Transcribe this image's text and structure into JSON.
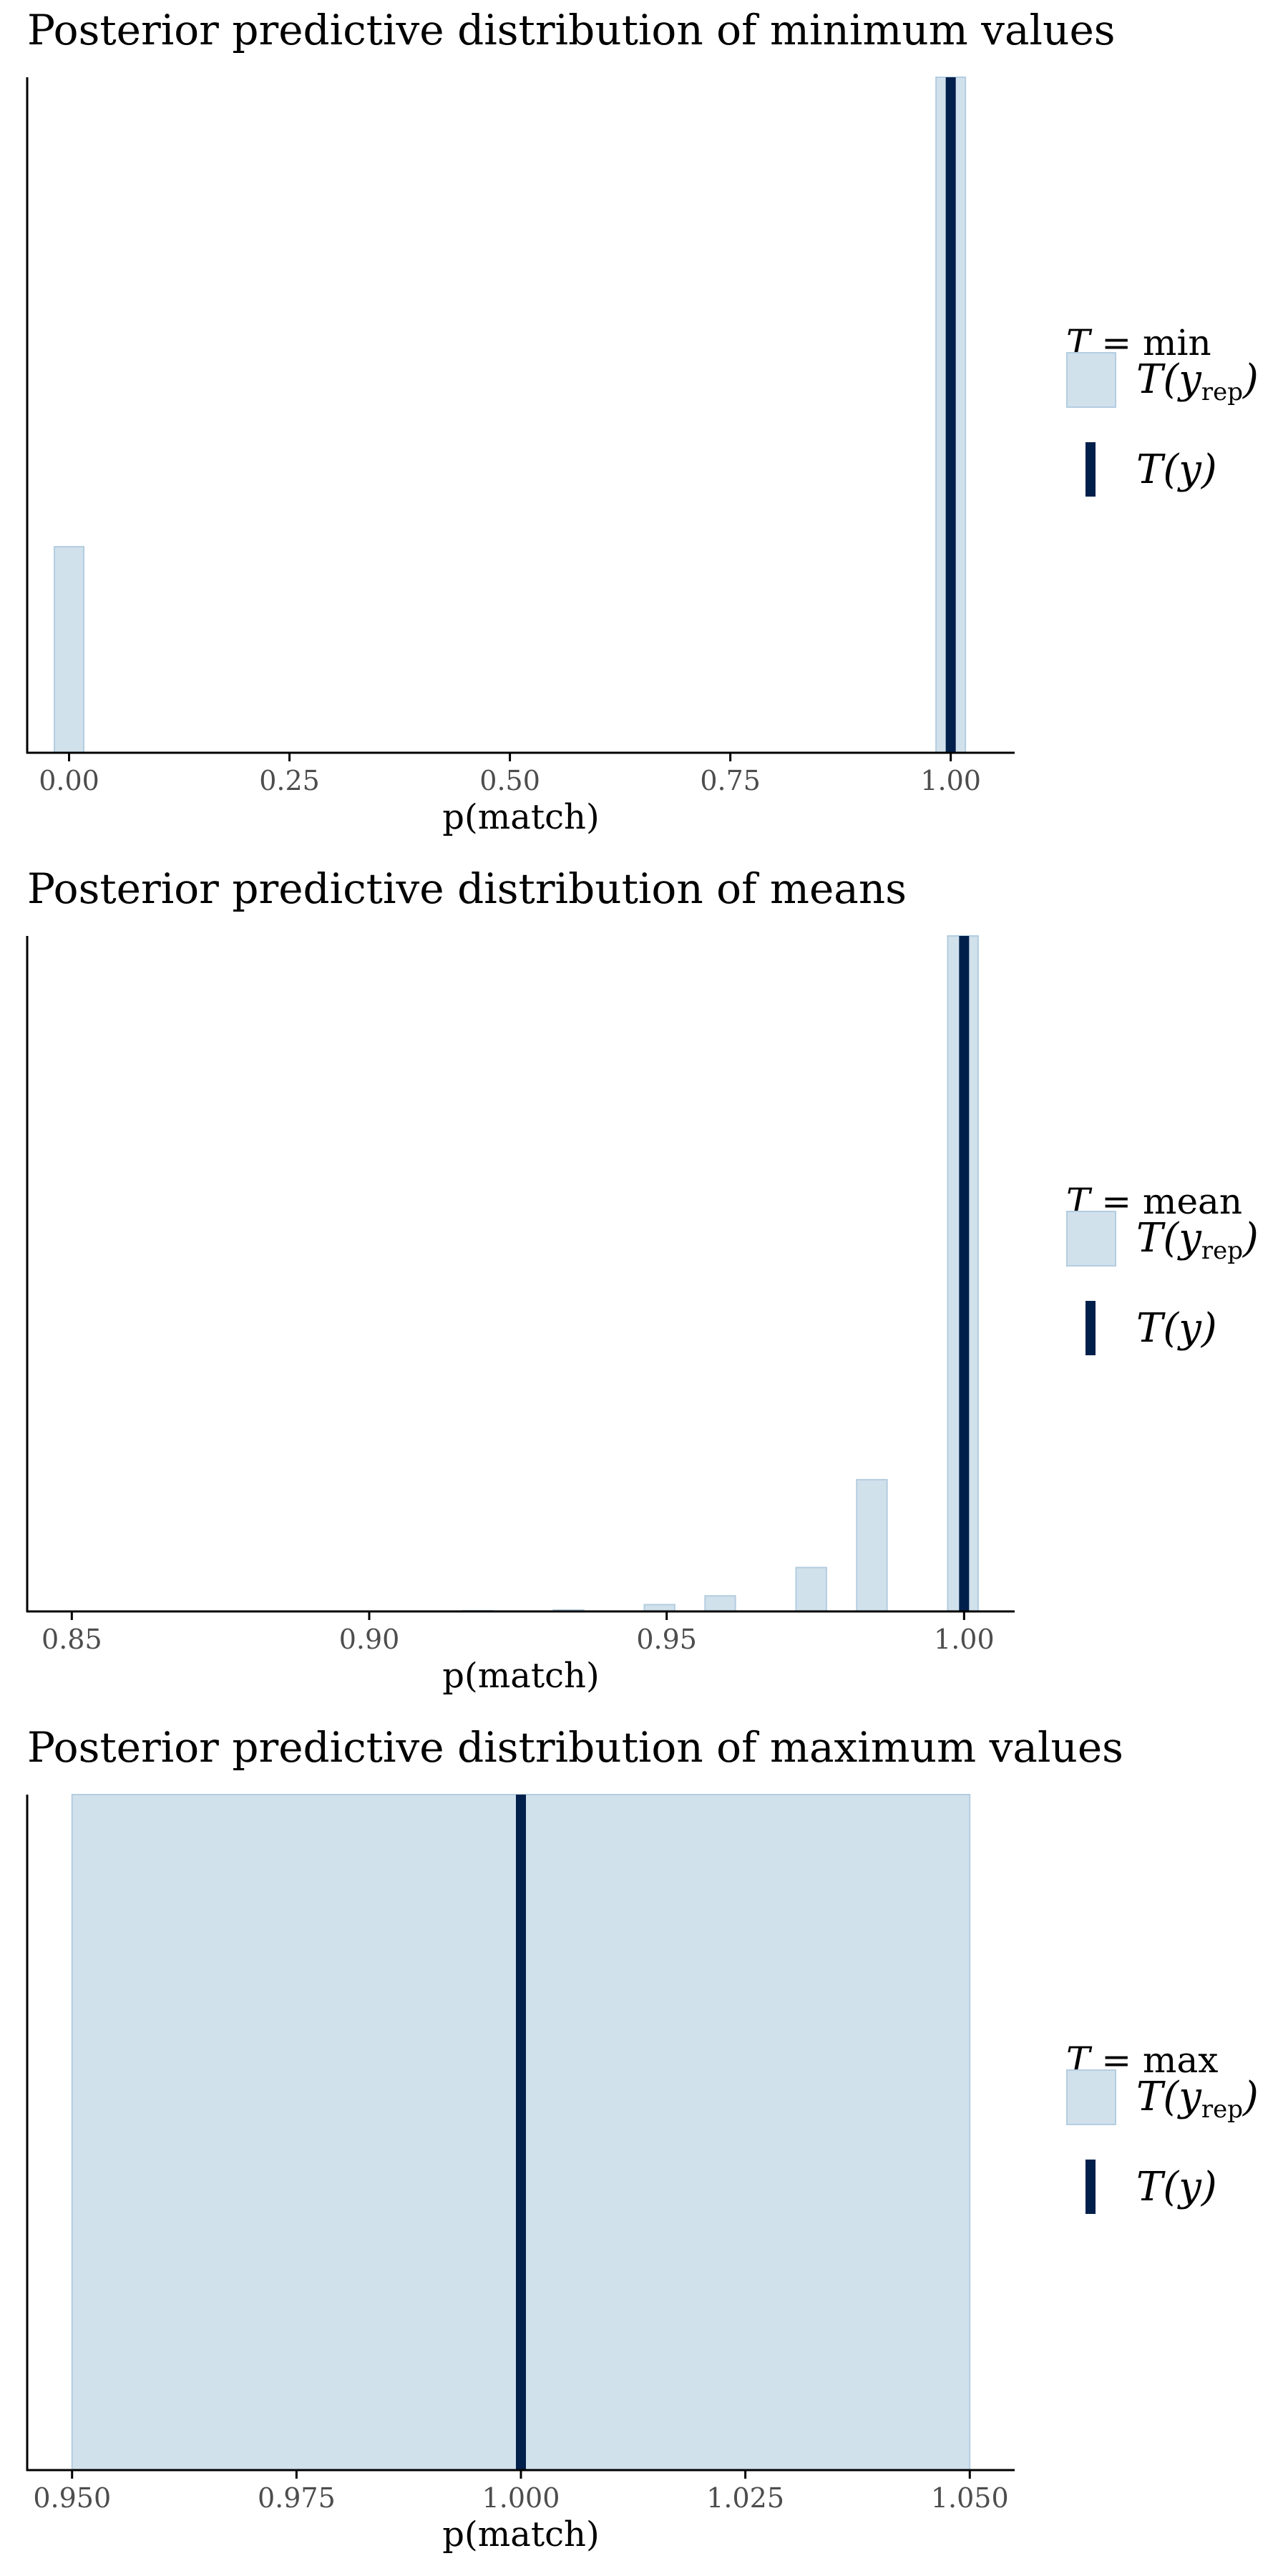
{
  "legend": {
    "stat_prefix": "T",
    "yrep_label": "T(y",
    "yrep_sub": "rep",
    "y_label": "T(y)",
    "colors": {
      "fill": "#d1e1ec",
      "outline": "#b3cde0",
      "observed": "#011f4b"
    }
  },
  "chart_data": [
    {
      "type": "bar",
      "title": "Posterior predictive distribution of minimum values",
      "xlabel": "p(match)",
      "ylabel": "",
      "legend_title": "= min",
      "xlim": [
        -0.0475,
        1.0725
      ],
      "ticks": [
        0.0,
        0.25,
        0.5,
        0.75,
        1.0
      ],
      "tick_labels": [
        "0.00",
        "0.25",
        "0.50",
        "0.75",
        "1.00"
      ],
      "bin_width": 0.0333,
      "bins": [
        {
          "x": 0.0,
          "count": 0.305
        },
        {
          "x": 1.0,
          "count": 1.0
        }
      ],
      "observed": 1.0
    },
    {
      "type": "bar",
      "title": "Posterior predictive distribution of means",
      "xlabel": "p(match)",
      "ylabel": "",
      "legend_title": "= mean",
      "xlim": [
        0.8425,
        1.0085
      ],
      "ticks": [
        0.85,
        0.9,
        0.95,
        1.0
      ],
      "tick_labels": [
        "0.85",
        "0.90",
        "0.95",
        "1.00"
      ],
      "bin_width": 0.0051,
      "bins": [
        {
          "x": 0.9182,
          "count": 0.001
        },
        {
          "x": 0.9335,
          "count": 0.002
        },
        {
          "x": 0.9488,
          "count": 0.01
        },
        {
          "x": 0.959,
          "count": 0.023
        },
        {
          "x": 0.9743,
          "count": 0.065
        },
        {
          "x": 0.9845,
          "count": 0.195
        },
        {
          "x": 0.9998,
          "count": 1.0
        }
      ],
      "observed": 1.0
    },
    {
      "type": "bar",
      "title": "Posterior predictive distribution of maximum values",
      "xlabel": "p(match)",
      "ylabel": "",
      "legend_title": "= max",
      "xlim": [
        0.945,
        1.055
      ],
      "ticks": [
        0.95,
        0.975,
        1.0,
        1.025,
        1.05
      ],
      "tick_labels": [
        "0.950",
        "0.975",
        "1.000",
        "1.025",
        "1.050"
      ],
      "bin_width": 0.1,
      "bins": [
        {
          "x": 1.0,
          "count": 1.0
        }
      ],
      "observed": 1.0
    }
  ]
}
